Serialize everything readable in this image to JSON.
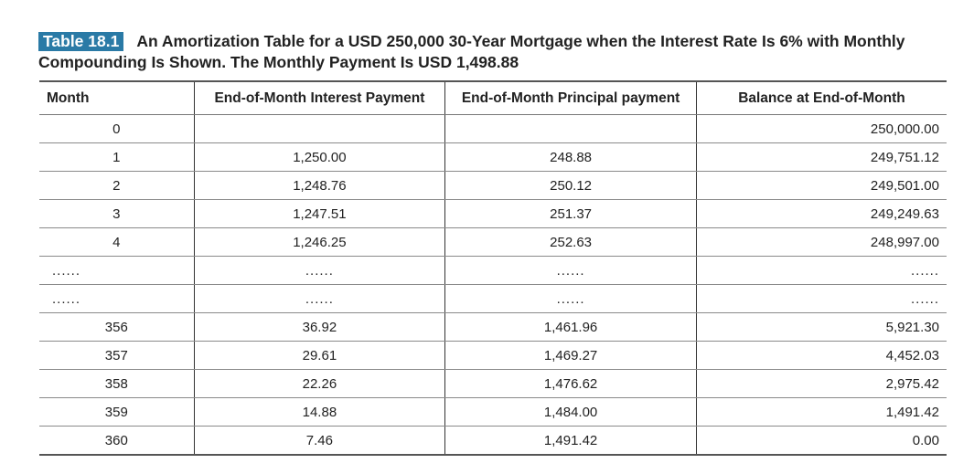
{
  "caption": {
    "tag": "Table 18.1",
    "text": "An Amortization Table for a USD 250,000 30-Year Mortgage when the Interest Rate Is 6% with Monthly Compounding Is Shown. The Monthly Payment Is USD 1,498.88"
  },
  "table": {
    "headers": [
      "Month",
      "End-of-Month Interest Payment",
      "End-of-Month Principal payment",
      "Balance at End-of-Month"
    ],
    "rows": [
      [
        "0",
        "",
        "",
        "250,000.00"
      ],
      [
        "1",
        "1,250.00",
        "248.88",
        "249,751.12"
      ],
      [
        "2",
        "1,248.76",
        "250.12",
        "249,501.00"
      ],
      [
        "3",
        "1,247.51",
        "251.37",
        "249,249.63"
      ],
      [
        "4",
        "1,246.25",
        "252.63",
        "248,997.00"
      ],
      [
        "......",
        "......",
        "......",
        "......"
      ],
      [
        "......",
        "......",
        "......",
        "......"
      ],
      [
        "356",
        "36.92",
        "1,461.96",
        "5,921.30"
      ],
      [
        "357",
        "29.61",
        "1,469.27",
        "4,452.03"
      ],
      [
        "358",
        "22.26",
        "1,476.62",
        "2,975.42"
      ],
      [
        "359",
        "14.88",
        "1,484.00",
        "1,491.42"
      ],
      [
        "360",
        "7.46",
        "1,491.42",
        "0.00"
      ]
    ]
  }
}
